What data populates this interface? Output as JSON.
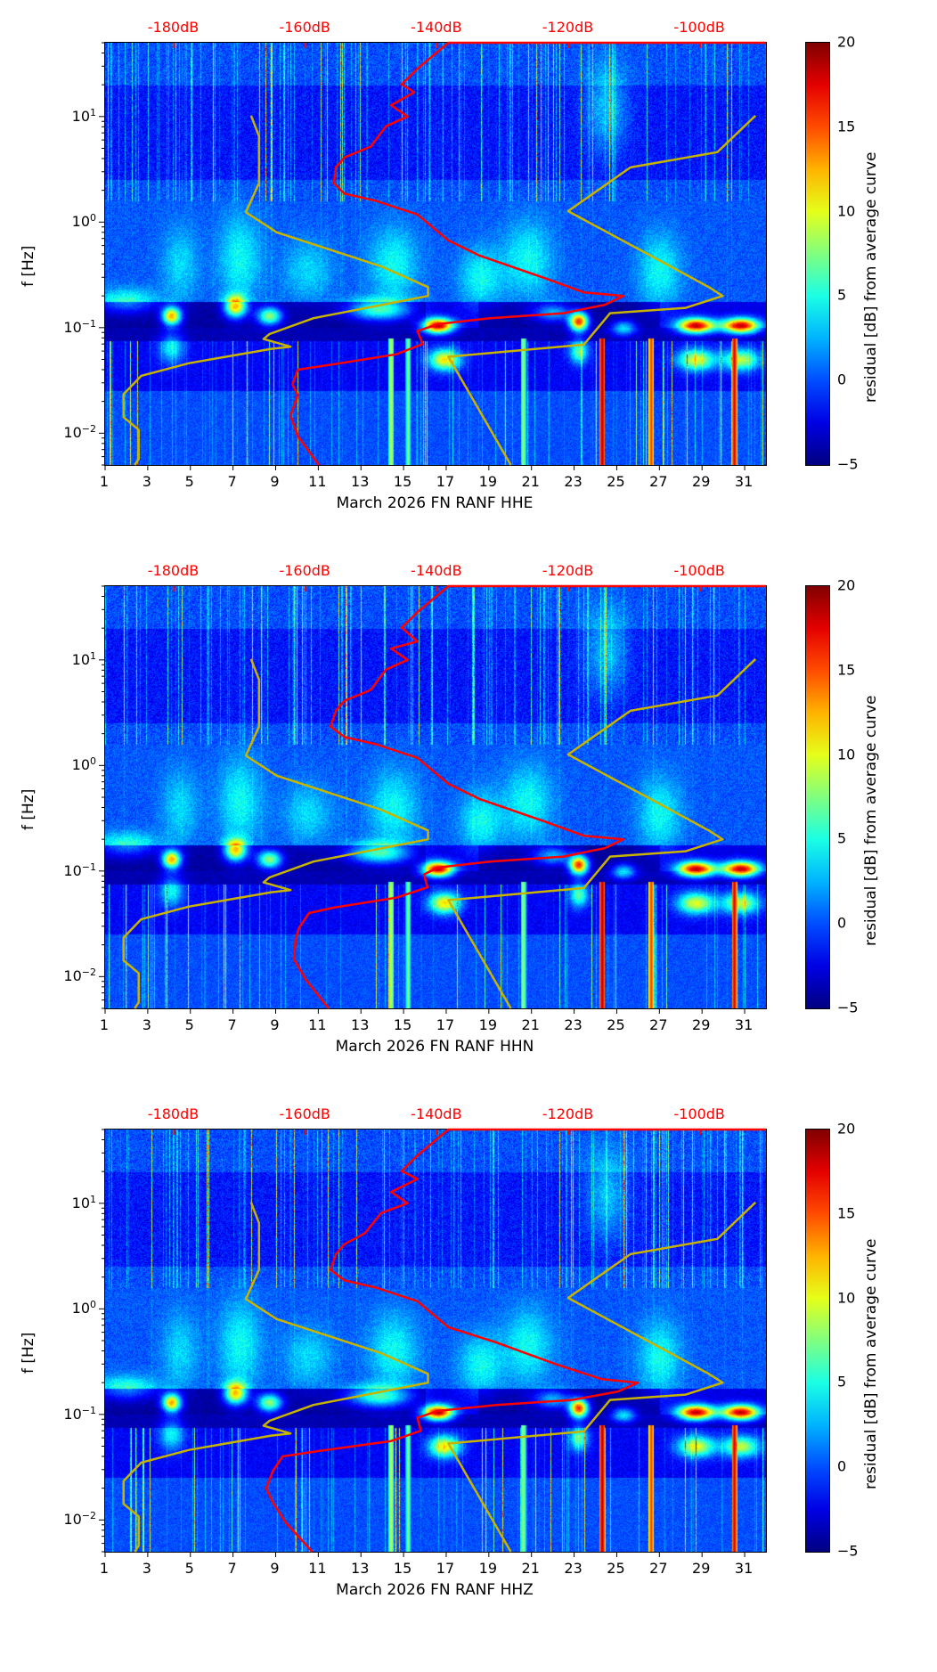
{
  "chart_data": {
    "type": "heatmap",
    "colormap": "jet",
    "x_axis": {
      "label_prefix": "March 2026 FN RANF",
      "range_days": [
        1,
        32
      ],
      "ticks": [
        1,
        3,
        5,
        7,
        9,
        11,
        13,
        15,
        17,
        19,
        21,
        23,
        25,
        27,
        29,
        31
      ]
    },
    "y_axis": {
      "label": "f [Hz]",
      "scale": "log",
      "range_hz": [
        0.005,
        50
      ],
      "ticks": [
        {
          "base": "10",
          "exp": "−2",
          "value": 0.01
        },
        {
          "base": "10",
          "exp": "−1",
          "value": 0.1
        },
        {
          "base": "10",
          "exp": "0",
          "value": 1
        },
        {
          "base": "10",
          "exp": "1",
          "value": 10
        }
      ]
    },
    "top_axis": {
      "range_db": [
        -190.5,
        -90
      ],
      "ticks": [
        {
          "label": "-180dB",
          "value": -180
        },
        {
          "label": "-160dB",
          "value": -160
        },
        {
          "label": "-140dB",
          "value": -140
        },
        {
          "label": "-120dB",
          "value": -120
        },
        {
          "label": "-100dB",
          "value": -100
        }
      ],
      "color": "#ff0000"
    },
    "colorbar": {
      "label": "residual [dB] from average curve",
      "range": [
        -5,
        20
      ],
      "ticks": [
        {
          "label": "20",
          "value": 20
        },
        {
          "label": "15",
          "value": 15
        },
        {
          "label": "10",
          "value": 10
        },
        {
          "label": "5",
          "value": 5
        },
        {
          "label": "0",
          "value": 0
        },
        {
          "label": "−5",
          "value": -5
        }
      ]
    },
    "model_curves": {
      "color": "#c8b400",
      "low_noise_model": [
        [
          -168.3,
          10.2
        ],
        [
          -167.1,
          6.5
        ],
        [
          -167.1,
          2.34
        ],
        [
          -169.1,
          1.24
        ],
        [
          -164.4,
          0.8
        ],
        [
          -148.5,
          0.38
        ],
        [
          -141.4,
          0.242
        ],
        [
          -141.4,
          0.2
        ],
        [
          -148.5,
          0.164
        ],
        [
          -158.8,
          0.123
        ],
        [
          -165.5,
          0.087
        ],
        [
          -166.4,
          0.078
        ],
        [
          -162.3,
          0.066
        ],
        [
          -165.2,
          0.063
        ],
        [
          -177.8,
          0.046
        ],
        [
          -185,
          0.035
        ],
        [
          -187.7,
          0.0234
        ],
        [
          -187.7,
          0.0142
        ],
        [
          -185.4,
          0.0108
        ],
        [
          -185.4,
          0.0057
        ],
        [
          -186,
          0.005
        ]
      ],
      "high_noise_model": [
        [
          -91.6,
          10.2
        ],
        [
          -97.4,
          4.6
        ],
        [
          -110.6,
          3.3
        ],
        [
          -120.1,
          1.27
        ],
        [
          -98.7,
          0.242
        ],
        [
          -96.6,
          0.2
        ],
        [
          -102.2,
          0.154
        ],
        [
          -113.7,
          0.137
        ],
        [
          -117.7,
          0.069
        ],
        [
          -138.3,
          0.053
        ],
        [
          -128.8,
          0.005
        ]
      ]
    },
    "panels": [
      {
        "channel": "HHE",
        "xlabel": "March 2026 FN RANF  HHE",
        "average_psd_curve": [
          [
            -90,
            50
          ],
          [
            -138.3,
            50
          ],
          [
            -143,
            28.4
          ],
          [
            -145.4,
            20.2
          ],
          [
            -143.5,
            17
          ],
          [
            -147,
            12.8
          ],
          [
            -144.5,
            10
          ],
          [
            -147.8,
            8.1
          ],
          [
            -150.1,
            5.2
          ],
          [
            -154.1,
            4.1
          ],
          [
            -155.4,
            3.3
          ],
          [
            -155.7,
            2.34
          ],
          [
            -154.1,
            1.86
          ],
          [
            -149.3,
            1.59
          ],
          [
            -143,
            1.18
          ],
          [
            -138.3,
            0.67
          ],
          [
            -133.5,
            0.48
          ],
          [
            -124,
            0.3
          ],
          [
            -117.7,
            0.216
          ],
          [
            -111.7,
            0.2
          ],
          [
            -114.5,
            0.165
          ],
          [
            -120.8,
            0.137
          ],
          [
            -132,
            0.123
          ],
          [
            -139.9,
            0.108
          ],
          [
            -143,
            0.093
          ],
          [
            -142.2,
            0.07
          ],
          [
            -146.2,
            0.056
          ],
          [
            -155.7,
            0.045
          ],
          [
            -161.2,
            0.04
          ],
          [
            -162,
            0.029
          ],
          [
            -161.2,
            0.023
          ],
          [
            -162.3,
            0.0147
          ],
          [
            -161.2,
            0.0094
          ],
          [
            -158,
            0.005
          ]
        ]
      },
      {
        "channel": "HHN",
        "xlabel": "March 2026 FN RANF  HHN",
        "average_psd_curve": [
          [
            -90,
            50
          ],
          [
            -138.3,
            50
          ],
          [
            -143,
            28.4
          ],
          [
            -145.4,
            20.2
          ],
          [
            -143,
            15
          ],
          [
            -147,
            12.8
          ],
          [
            -144.5,
            10
          ],
          [
            -147.8,
            8.1
          ],
          [
            -150.1,
            5.2
          ],
          [
            -154.1,
            4.1
          ],
          [
            -155.4,
            3.3
          ],
          [
            -156.2,
            2.34
          ],
          [
            -154.1,
            1.86
          ],
          [
            -149.3,
            1.59
          ],
          [
            -143,
            1.18
          ],
          [
            -138.3,
            0.67
          ],
          [
            -133.5,
            0.48
          ],
          [
            -124,
            0.3
          ],
          [
            -117.7,
            0.216
          ],
          [
            -111.7,
            0.2
          ],
          [
            -114.5,
            0.165
          ],
          [
            -120.8,
            0.137
          ],
          [
            -132,
            0.123
          ],
          [
            -139.9,
            0.108
          ],
          [
            -142,
            0.093
          ],
          [
            -141.5,
            0.07
          ],
          [
            -146.2,
            0.056
          ],
          [
            -155.7,
            0.045
          ],
          [
            -159.5,
            0.04
          ],
          [
            -161,
            0.029
          ],
          [
            -161.5,
            0.023
          ],
          [
            -161.8,
            0.0147
          ],
          [
            -160,
            0.0094
          ],
          [
            -156.5,
            0.005
          ]
        ]
      },
      {
        "channel": "HHZ",
        "xlabel": "March 2026 FN RANF  HHZ",
        "average_psd_curve": [
          [
            -90,
            50
          ],
          [
            -138.3,
            50
          ],
          [
            -143,
            28.4
          ],
          [
            -145.4,
            20.2
          ],
          [
            -143,
            17
          ],
          [
            -147,
            12.8
          ],
          [
            -144.5,
            10
          ],
          [
            -148.5,
            8.1
          ],
          [
            -151,
            5.2
          ],
          [
            -154.1,
            4.1
          ],
          [
            -155.4,
            3.3
          ],
          [
            -156.2,
            2.34
          ],
          [
            -154.1,
            1.86
          ],
          [
            -149.3,
            1.59
          ],
          [
            -143,
            1.18
          ],
          [
            -138.3,
            0.67
          ],
          [
            -131,
            0.48
          ],
          [
            -122,
            0.3
          ],
          [
            -115,
            0.216
          ],
          [
            -109.5,
            0.2
          ],
          [
            -112.5,
            0.165
          ],
          [
            -119.5,
            0.137
          ],
          [
            -131,
            0.123
          ],
          [
            -139.9,
            0.108
          ],
          [
            -143,
            0.093
          ],
          [
            -142.5,
            0.07
          ],
          [
            -147,
            0.056
          ],
          [
            -158,
            0.045
          ],
          [
            -163.5,
            0.04
          ],
          [
            -165,
            0.029
          ],
          [
            -166,
            0.02
          ],
          [
            -165,
            0.0147
          ],
          [
            -163,
            0.0094
          ],
          [
            -159,
            0.005
          ]
        ]
      }
    ],
    "residual_features": [
      {
        "day": 2,
        "freq": 0.18,
        "db": 5,
        "sd_day": 1.0,
        "sd_dec": 0.08
      },
      {
        "day": 4.1,
        "freq": 0.13,
        "db": 15,
        "sd_day": 0.3,
        "sd_dec": 0.06
      },
      {
        "day": 4.1,
        "freq": 0.065,
        "db": 6,
        "sd_day": 0.4,
        "sd_dec": 0.1
      },
      {
        "day": 4.5,
        "freq": 0.4,
        "db": 3,
        "sd_day": 0.6,
        "sd_dec": 0.25
      },
      {
        "day": 7.1,
        "freq": 0.16,
        "db": 14,
        "sd_day": 0.35,
        "sd_dec": 0.07
      },
      {
        "day": 7.3,
        "freq": 0.45,
        "db": 4,
        "sd_day": 0.7,
        "sd_dec": 0.3
      },
      {
        "day": 8.7,
        "freq": 0.13,
        "db": 11,
        "sd_day": 0.4,
        "sd_dec": 0.06
      },
      {
        "day": 10.5,
        "freq": 0.35,
        "db": 3,
        "sd_day": 0.8,
        "sd_dec": 0.2
      },
      {
        "day": 13.8,
        "freq": 0.15,
        "db": 9,
        "sd_day": 1.0,
        "sd_dec": 0.07
      },
      {
        "day": 14.5,
        "freq": 0.4,
        "db": 4,
        "sd_day": 0.8,
        "sd_dec": 0.25
      },
      {
        "day": 16.6,
        "freq": 0.105,
        "db": 19,
        "sd_day": 0.5,
        "sd_dec": 0.05
      },
      {
        "day": 16.9,
        "freq": 0.05,
        "db": 12,
        "sd_day": 0.5,
        "sd_dec": 0.07
      },
      {
        "day": 18.6,
        "freq": 0.3,
        "db": 4,
        "sd_day": 0.7,
        "sd_dec": 0.2
      },
      {
        "day": 20.8,
        "freq": 0.45,
        "db": 4,
        "sd_day": 0.8,
        "sd_dec": 0.25
      },
      {
        "day": 22,
        "freq": 0.14,
        "db": 6,
        "sd_day": 0.6,
        "sd_dec": 0.06
      },
      {
        "day": 23.2,
        "freq": 0.115,
        "db": 18,
        "sd_day": 0.3,
        "sd_dec": 0.06
      },
      {
        "day": 23.2,
        "freq": 0.06,
        "db": 8,
        "sd_day": 0.3,
        "sd_dec": 0.08
      },
      {
        "day": 24.5,
        "freq": 12,
        "db": 4,
        "sd_day": 0.7,
        "sd_dec": 0.3
      },
      {
        "day": 25.3,
        "freq": 0.1,
        "db": 7,
        "sd_day": 0.4,
        "sd_dec": 0.05
      },
      {
        "day": 27,
        "freq": 0.35,
        "db": 4,
        "sd_day": 0.7,
        "sd_dec": 0.25
      },
      {
        "day": 28.7,
        "freq": 0.105,
        "db": 19,
        "sd_day": 0.6,
        "sd_dec": 0.05
      },
      {
        "day": 28.7,
        "freq": 0.05,
        "db": 11,
        "sd_day": 0.6,
        "sd_dec": 0.07
      },
      {
        "day": 30.8,
        "freq": 0.105,
        "db": 19,
        "sd_day": 0.6,
        "sd_dec": 0.05
      },
      {
        "day": 30.8,
        "freq": 0.05,
        "db": 10,
        "sd_day": 0.6,
        "sd_dec": 0.07
      }
    ],
    "low_frequency_lines": [
      {
        "day": 24.3,
        "db": 19
      },
      {
        "day": 26.6,
        "db": 16
      },
      {
        "day": 30.5,
        "db": 18
      },
      {
        "day": 14.4,
        "db": 10
      },
      {
        "day": 15.2,
        "db": 8
      },
      {
        "day": 20.6,
        "db": 9
      }
    ]
  }
}
